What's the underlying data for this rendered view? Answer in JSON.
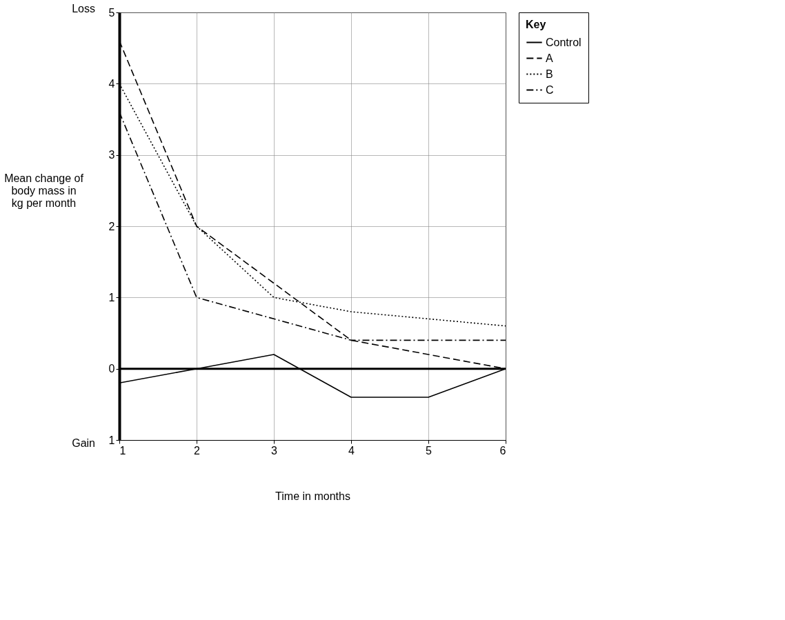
{
  "chart_data": {
    "type": "line",
    "xlabel": "Time in months",
    "ylabel": "Mean change of body mass in kg per month",
    "legend_title": "Key",
    "legend": "right",
    "grid": true,
    "x": [
      1,
      2,
      3,
      4,
      5,
      6
    ],
    "xlim": [
      1,
      6
    ],
    "xticks": [
      1,
      2,
      3,
      4,
      5,
      6
    ],
    "ylim": [
      -1,
      5
    ],
    "yticks": [
      {
        "value": -1,
        "label": "1"
      },
      0,
      1,
      2,
      3,
      4,
      5
    ],
    "series": [
      {
        "name": "Control",
        "color": "#000000",
        "line_style": "solid",
        "values": [
          -0.2,
          0,
          0.2,
          -0.4,
          -0.4,
          0
        ]
      },
      {
        "name": "A",
        "color": "#000000",
        "line_style": "dashed",
        "values": [
          4.6,
          2.0,
          1.2,
          0.4,
          0.2,
          0
        ]
      },
      {
        "name": "B",
        "color": "#000000",
        "line_style": "dotted",
        "values": [
          4.0,
          2.0,
          1.0,
          0.8,
          0.7,
          0.6
        ]
      },
      {
        "name": "C",
        "color": "#000000",
        "line_style": "dashdot",
        "values": [
          3.6,
          1.0,
          0.7,
          0.4,
          0.4,
          0.4
        ]
      }
    ],
    "ref_lines": [
      {
        "axis": "y",
        "value": 0,
        "color": "#000000",
        "line_style": "solid"
      }
    ],
    "annotations": [
      "Loss",
      "Gain"
    ]
  }
}
